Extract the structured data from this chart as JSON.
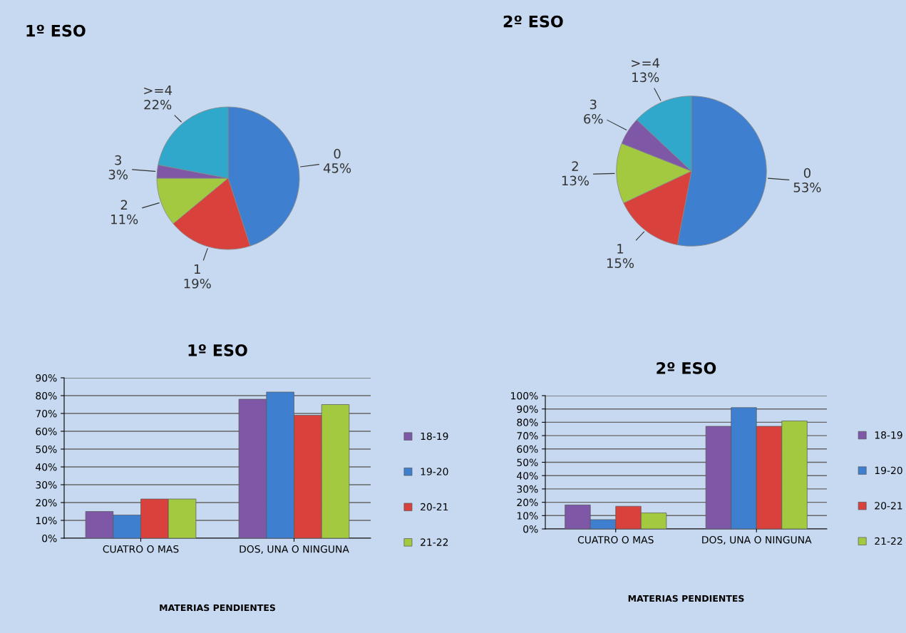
{
  "chart_data": [
    {
      "type": "pie",
      "title": "1º ESO",
      "categories": [
        "0",
        "1",
        "2",
        "3",
        ">=4"
      ],
      "values": [
        45,
        19,
        11,
        3,
        22
      ],
      "value_labels": [
        "45%",
        "19%",
        "11%",
        "3%",
        "22%"
      ],
      "colors": [
        "#3f7fcf",
        "#d9413d",
        "#a3c940",
        "#7e57a6",
        "#2fa8cc"
      ]
    },
    {
      "type": "pie",
      "title": "2º ESO",
      "categories": [
        "0",
        "1",
        "2",
        "3",
        ">=4"
      ],
      "values": [
        53,
        15,
        13,
        6,
        13
      ],
      "value_labels": [
        "53%",
        "15%",
        "13%",
        "6%",
        "13%"
      ],
      "colors": [
        "#3f7fcf",
        "#d9413d",
        "#a3c940",
        "#7e57a6",
        "#2fa8cc"
      ]
    },
    {
      "type": "bar",
      "title": "1º ESO",
      "xlabel": "MATERIAS PENDIENTES",
      "categories": [
        "CUATRO O MAS",
        "DOS, UNA O NINGUNA"
      ],
      "series": [
        {
          "name": "18-19",
          "color": "#7e57a6",
          "values": [
            15,
            78
          ]
        },
        {
          "name": "19-20",
          "color": "#3f7fcf",
          "values": [
            13,
            82
          ]
        },
        {
          "name": "20-21",
          "color": "#d9413d",
          "values": [
            22,
            69
          ]
        },
        {
          "name": "21-22",
          "color": "#a3c940",
          "values": [
            22,
            75
          ]
        }
      ],
      "ylim": [
        0,
        90
      ],
      "yticks": [
        {
          "value": 0,
          "label": "0%"
        },
        {
          "value": 10,
          "label": "10%"
        },
        {
          "value": 20,
          "label": "20%"
        },
        {
          "value": 30,
          "label": "30%"
        },
        {
          "value": 40,
          "label": "40%"
        },
        {
          "value": 50,
          "label": "50%"
        },
        {
          "value": 60,
          "label": "60%"
        },
        {
          "value": 70,
          "label": "70%"
        },
        {
          "value": 80,
          "label": "80%"
        },
        {
          "value": 90,
          "label": "90%"
        }
      ],
      "grid": "y",
      "legend": "right"
    },
    {
      "type": "bar",
      "title": "2º ESO",
      "xlabel": "MATERIAS PENDIENTES",
      "categories": [
        "CUATRO O MAS",
        "DOS, UNA O NINGUNA"
      ],
      "series": [
        {
          "name": "18-19",
          "color": "#7e57a6",
          "values": [
            18,
            77
          ]
        },
        {
          "name": "19-20",
          "color": "#3f7fcf",
          "values": [
            7,
            91
          ]
        },
        {
          "name": "20-21",
          "color": "#d9413d",
          "values": [
            17,
            77
          ]
        },
        {
          "name": "21-22",
          "color": "#a3c940",
          "values": [
            12,
            81
          ]
        }
      ],
      "ylim": [
        0,
        100
      ],
      "yticks": [
        {
          "value": 0,
          "label": "0%"
        },
        {
          "value": 10,
          "label": "10%"
        },
        {
          "value": 20,
          "label": "20%"
        },
        {
          "value": 30,
          "label": "30%"
        },
        {
          "value": 40,
          "label": "40%"
        },
        {
          "value": 50,
          "label": "50%"
        },
        {
          "value": 60,
          "label": "60%"
        },
        {
          "value": 70,
          "label": "70%"
        },
        {
          "value": 80,
          "label": "80%"
        },
        {
          "value": 90,
          "label": "90%"
        },
        {
          "value": 100,
          "label": "100%"
        }
      ],
      "grid": "y",
      "legend": "right"
    }
  ]
}
